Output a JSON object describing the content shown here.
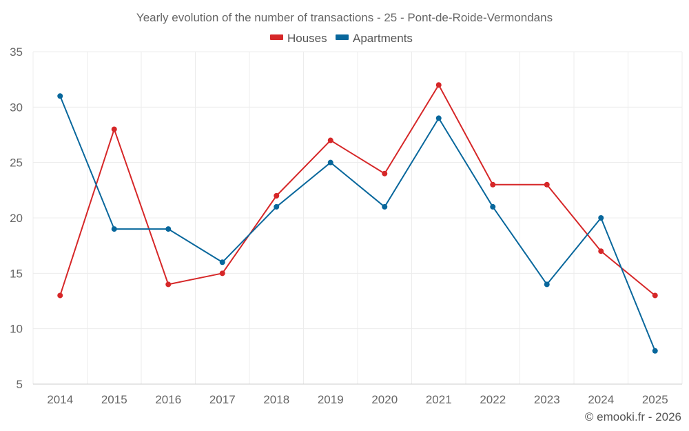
{
  "chart_data": {
    "type": "line",
    "title": "Yearly evolution of the number of transactions - 25 - Pont-de-Roide-Vermondans",
    "categories": [
      "2014",
      "2015",
      "2016",
      "2017",
      "2018",
      "2019",
      "2020",
      "2021",
      "2022",
      "2023",
      "2024",
      "2025"
    ],
    "series": [
      {
        "name": "Houses",
        "color": "#d62728",
        "values": [
          13,
          28,
          14,
          15,
          22,
          27,
          24,
          32,
          23,
          23,
          17,
          13
        ]
      },
      {
        "name": "Apartments",
        "color": "#08679c",
        "values": [
          31,
          19,
          19,
          16,
          21,
          25,
          21,
          29,
          21,
          14,
          20,
          8
        ]
      }
    ],
    "ylim": [
      5,
      35
    ],
    "yticks": [
      5,
      10,
      15,
      20,
      25,
      30,
      35
    ],
    "xlabel": "",
    "ylabel": "",
    "grid": true,
    "legend": "top-center"
  },
  "credit": "© emooki.fr - 2026"
}
